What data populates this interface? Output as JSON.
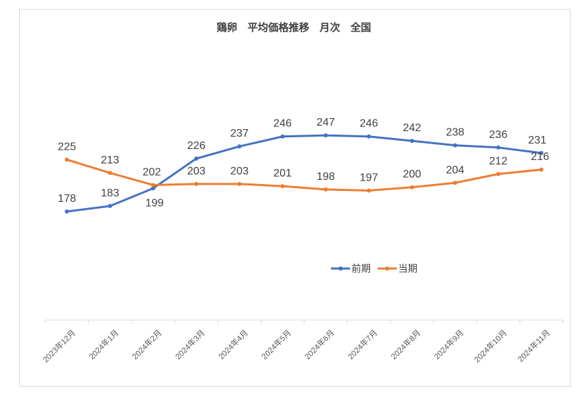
{
  "chart_data": {
    "type": "line",
    "title": "鶏卵　平均価格推移　月次　全国",
    "categories": [
      "2023年12月",
      "2024年1月",
      "2024年2月",
      "2024年3月",
      "2024年4月",
      "2024年5月",
      "2024年6月",
      "2024年7月",
      "2024年8月",
      "2024年9月",
      "2024年10月",
      "2024年11月"
    ],
    "series": [
      {
        "name": "前期",
        "color": "#4472c4",
        "values": [
          178,
          183,
          199,
          226,
          237,
          246,
          247,
          246,
          242,
          238,
          236,
          231
        ]
      },
      {
        "name": "当期",
        "color": "#ed7d31",
        "values": [
          225,
          213,
          202,
          203,
          203,
          201,
          198,
          197,
          200,
          204,
          212,
          216
        ]
      }
    ],
    "legend_position": "center",
    "grid": false
  }
}
